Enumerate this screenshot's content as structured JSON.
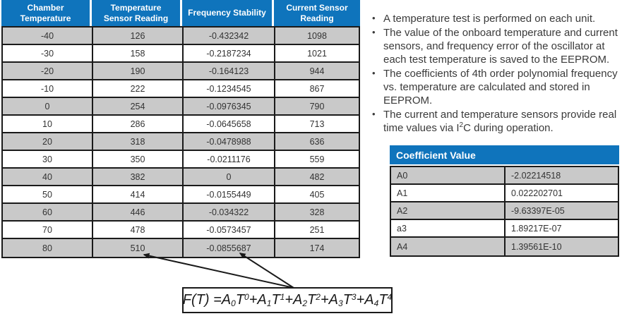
{
  "colors": {
    "header_blue": "#0F74BC",
    "row_gray": "#C9C9C9",
    "row_white": "#FFFFFF",
    "border_black": "#1A1A1A"
  },
  "main_table": {
    "headers": [
      "Chamber Temperature",
      "Temperature Sensor Reading",
      "Frequency Stability",
      "Current Sensor Reading"
    ],
    "rows": [
      [
        "-40",
        "126",
        "-0.432342",
        "1098"
      ],
      [
        "-30",
        "158",
        "-0.2187234",
        "1021"
      ],
      [
        "-20",
        "190",
        "-0.164123",
        "944"
      ],
      [
        "-10",
        "222",
        "-0.1234545",
        "867"
      ],
      [
        "0",
        "254",
        "-0.0976345",
        "790"
      ],
      [
        "10",
        "286",
        "-0.0645658",
        "713"
      ],
      [
        "20",
        "318",
        "-0.0478988",
        "636"
      ],
      [
        "30",
        "350",
        "-0.0211176",
        "559"
      ],
      [
        "40",
        "382",
        "0",
        "482"
      ],
      [
        "50",
        "414",
        "-0.0155449",
        "405"
      ],
      [
        "60",
        "446",
        "-0.034322",
        "328"
      ],
      [
        "70",
        "478",
        "-0.0573457",
        "251"
      ],
      [
        "80",
        "510",
        "-0.0855687",
        "174"
      ]
    ]
  },
  "notes": {
    "bullets": [
      "A temperature test is performed on each unit.",
      "The value of the onboard temperature and current sensors, and frequency error of the oscillator at each test temperature is saved to the EEPROM.",
      "The coefficients of 4th order polynomial frequency vs. temperature are calculated and stored in EEPROM.",
      "The current and temperature sensors provide real time values via I^2^C during operation."
    ]
  },
  "coefficient_table": {
    "header": "Coefficient Value",
    "rows": [
      [
        "A0",
        "-2.02214518"
      ],
      [
        "A1",
        "0.022202701"
      ],
      [
        "A2",
        "-9.63397E-05"
      ],
      [
        "a3",
        "1.89217E-07"
      ],
      [
        "A4",
        "1.39561E-10"
      ]
    ]
  },
  "formula": {
    "tokens": [
      {
        "t": "F(T) = "
      },
      {
        "t": "A"
      },
      {
        "t": "0",
        "s": "sub"
      },
      {
        "t": "T"
      },
      {
        "t": "0",
        "s": "sup"
      },
      {
        "t": "+"
      },
      {
        "t": "A"
      },
      {
        "t": "1",
        "s": "sub"
      },
      {
        "t": "T"
      },
      {
        "t": "1",
        "s": "sup"
      },
      {
        "t": "+"
      },
      {
        "t": "A"
      },
      {
        "t": "2",
        "s": "sub"
      },
      {
        "t": "T"
      },
      {
        "t": "2",
        "s": "sup"
      },
      {
        "t": "+"
      },
      {
        "t": "A"
      },
      {
        "t": "3",
        "s": "sub"
      },
      {
        "t": "T"
      },
      {
        "t": "3",
        "s": "sup"
      },
      {
        "t": "+"
      },
      {
        "t": "A"
      },
      {
        "t": "4",
        "s": "sub"
      },
      {
        "t": "T"
      },
      {
        "t": "4",
        "s": "sup"
      }
    ]
  }
}
